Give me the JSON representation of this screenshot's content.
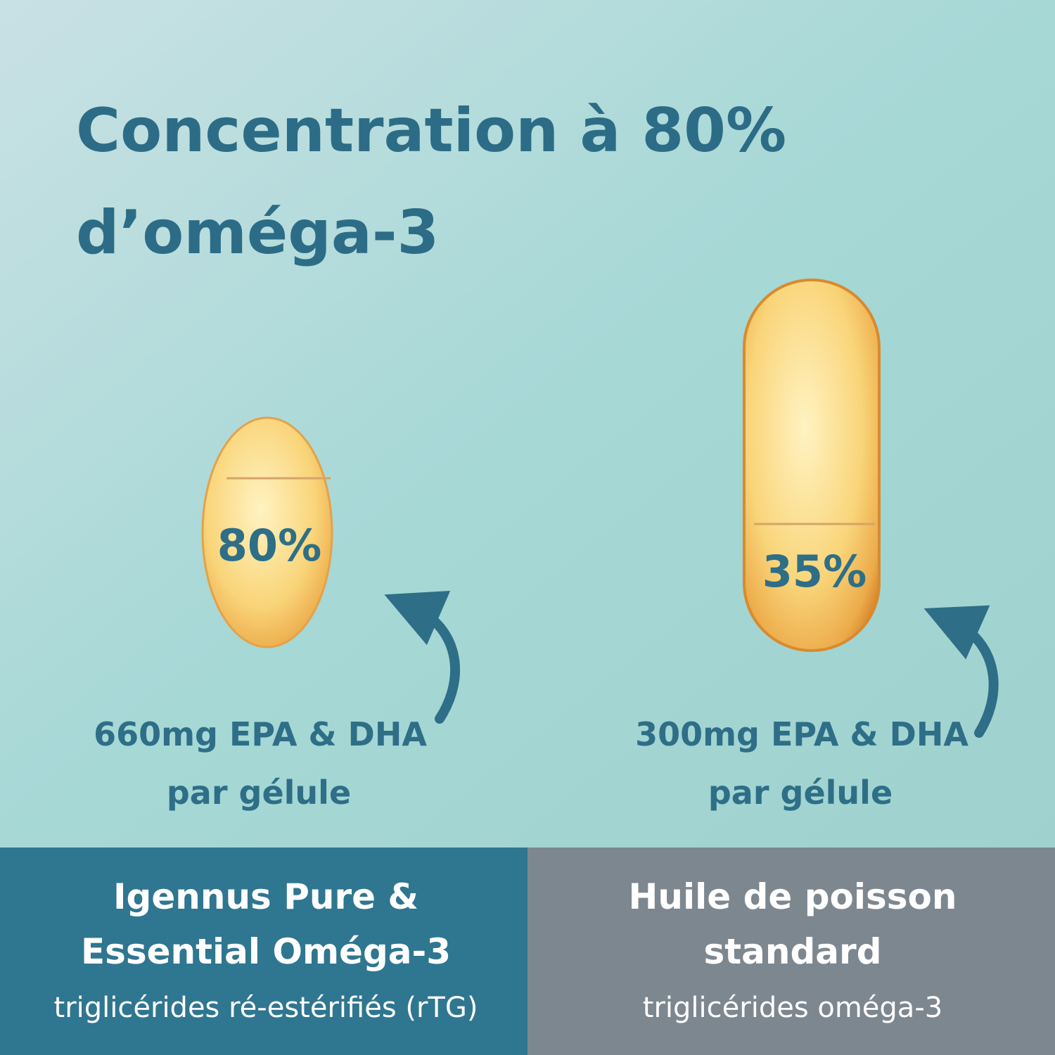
{
  "title": [
    "Concentration à 80%",
    "d’oméga-3"
  ],
  "products": [
    {
      "percent": "80%",
      "dose": "660mg EPA & DHA",
      "per": "par gélule",
      "name": [
        "Igennus Pure &",
        "Essential Oméga-3"
      ],
      "subtitle": "triglicérides ré-estérifiés (rTG)"
    },
    {
      "percent": "35%",
      "dose": "300mg EPA & DHA",
      "per": "par gélule",
      "name": [
        "Huile de poisson",
        "standard"
      ],
      "subtitle": "triglicérides oméga-3"
    }
  ]
}
